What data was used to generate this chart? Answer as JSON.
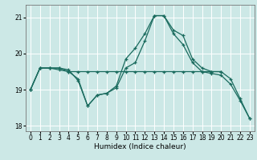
{
  "xlabel": "Humidex (Indice chaleur)",
  "bg_color": "#cce8e6",
  "line_color": "#1a6b5e",
  "grid_color": "#ffffff",
  "ylim": [
    17.85,
    21.35
  ],
  "xlim": [
    -0.5,
    23.5
  ],
  "yticks": [
    18,
    19,
    20,
    21
  ],
  "xticks": [
    0,
    1,
    2,
    3,
    4,
    5,
    6,
    7,
    8,
    9,
    10,
    11,
    12,
    13,
    14,
    15,
    16,
    17,
    18,
    19,
    20,
    21,
    22,
    23
  ],
  "line1": [
    19.0,
    19.6,
    19.6,
    19.6,
    19.55,
    19.25,
    18.55,
    18.85,
    18.9,
    19.1,
    19.85,
    20.15,
    20.55,
    21.05,
    21.05,
    20.65,
    20.5,
    19.85,
    19.6,
    19.5,
    19.5,
    19.3,
    18.75,
    18.2
  ],
  "line2": [
    19.0,
    19.6,
    19.6,
    19.6,
    19.5,
    19.3,
    18.55,
    18.85,
    18.9,
    19.05,
    19.6,
    19.75,
    20.35,
    21.05,
    21.05,
    20.55,
    20.25,
    19.75,
    19.5,
    19.45,
    19.4,
    19.15,
    18.7,
    18.2
  ],
  "line3": [
    19.0,
    19.6,
    19.6,
    19.55,
    19.5,
    19.5,
    19.5,
    19.5,
    19.5,
    19.5,
    19.5,
    19.5,
    19.5,
    19.5,
    19.5,
    19.5,
    19.5,
    19.5,
    19.5,
    19.5,
    19.5,
    null,
    null,
    null
  ]
}
